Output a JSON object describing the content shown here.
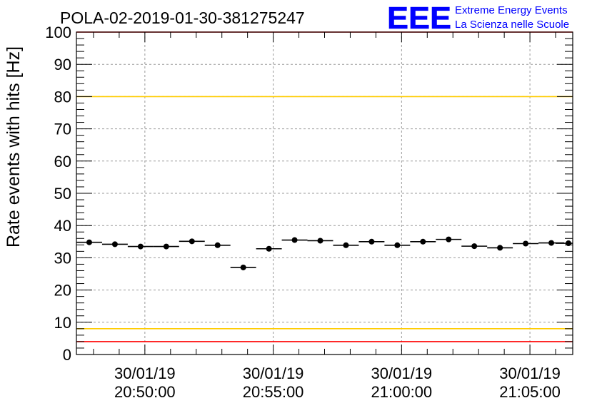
{
  "header": {
    "title": "POLA-02-2019-01-30-381275247",
    "logo_text": "EEE",
    "logo_line1": "Extreme Energy Events",
    "logo_line2": "La Scienza nelle Scuole"
  },
  "chart_data": {
    "type": "scatter",
    "title": "POLA-02-2019-01-30-381275247",
    "xlabel": "",
    "ylabel": "Rate events with hits [Hz]",
    "ylim": [
      0,
      100
    ],
    "xlim": [
      "2019-01-30 20:47:20",
      "2019-01-30 21:06:40"
    ],
    "yticks": [
      0,
      10,
      20,
      30,
      40,
      50,
      60,
      70,
      80,
      90,
      100
    ],
    "xticks": [
      {
        "date": "30/01/19",
        "time": "20:50:00",
        "value": "2019-01-30 20:50:00"
      },
      {
        "date": "30/01/19",
        "time": "20:55:00",
        "value": "2019-01-30 20:55:00"
      },
      {
        "date": "30/01/19",
        "time": "21:00:00",
        "value": "2019-01-30 21:00:00"
      },
      {
        "date": "30/01/19",
        "time": "21:05:00",
        "value": "2019-01-30 21:05:00"
      }
    ],
    "grid": true,
    "series": [
      {
        "x": [
          "2019-01-30 20:47:50",
          "2019-01-30 20:48:50",
          "2019-01-30 20:49:50",
          "2019-01-30 20:50:50",
          "2019-01-30 20:51:50",
          "2019-01-30 20:52:50",
          "2019-01-30 20:53:50",
          "2019-01-30 20:54:50",
          "2019-01-30 20:55:50",
          "2019-01-30 20:56:50",
          "2019-01-30 20:57:50",
          "2019-01-30 20:58:50",
          "2019-01-30 20:59:50",
          "2019-01-30 21:00:50",
          "2019-01-30 21:01:50",
          "2019-01-30 21:02:50",
          "2019-01-30 21:03:50",
          "2019-01-30 21:04:50",
          "2019-01-30 21:05:50",
          "2019-01-30 21:06:30"
        ],
        "y": [
          34.8,
          34.2,
          33.5,
          33.5,
          35.1,
          33.9,
          27.0,
          32.8,
          35.5,
          35.3,
          33.9,
          35.0,
          33.9,
          35.0,
          35.7,
          33.6,
          33.1,
          34.4,
          34.6,
          34.5
        ],
        "bin_width_s": 60
      }
    ],
    "reference_lines": [
      {
        "y": 100,
        "color": "#ff0000"
      },
      {
        "y": 80,
        "color": "#ffcc00"
      },
      {
        "y": 8,
        "color": "#ffcc00"
      },
      {
        "y": 4,
        "color": "#ff0000"
      }
    ],
    "colors": {
      "points": "#000000",
      "grid": "#9a9a9a",
      "logo": "#0000ff"
    }
  }
}
